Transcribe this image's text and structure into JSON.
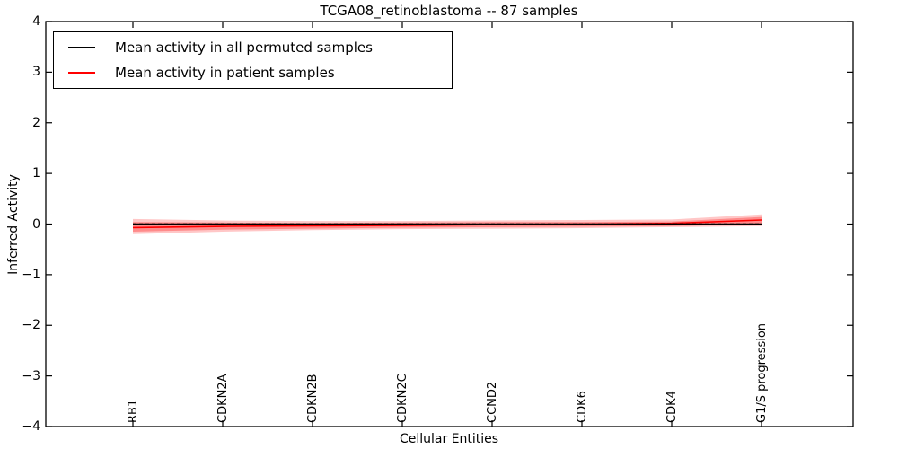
{
  "title": "TCGA08_retinoblastoma -- 87 samples",
  "axes": {
    "xlabel": "Cellular Entities",
    "ylabel": "Inferred Activity",
    "ytick_labels": [
      "4",
      "3",
      "2",
      "1",
      "0",
      "−1",
      "−2",
      "−3",
      "−4"
    ]
  },
  "legend": {
    "items": [
      {
        "label": "Mean activity in all permuted samples",
        "color": "#000000"
      },
      {
        "label": "Mean activity in patient samples",
        "color": "#ff0000"
      }
    ]
  },
  "chart_data": {
    "type": "line",
    "title": "TCGA08_retinoblastoma -- 87 samples",
    "xlabel": "Cellular Entities",
    "ylabel": "Inferred Activity",
    "ylim": [
      -4,
      4
    ],
    "yticks": [
      4,
      3,
      2,
      1,
      0,
      -1,
      -2,
      -3,
      -4
    ],
    "grid": false,
    "legend_position": "upper left",
    "categories": [
      "RB1",
      "CDKN2A",
      "CDKN2B",
      "CDKN2C",
      "CCND2",
      "CDK6",
      "CDK4",
      "G1/S progression"
    ],
    "series": [
      {
        "name": "Mean activity in all permuted samples",
        "color": "#000000",
        "style": "solid",
        "values": [
          0.0,
          0.0,
          0.0,
          0.0,
          0.0,
          0.0,
          0.0,
          0.0
        ]
      },
      {
        "name": "Mean activity in patient samples",
        "color": "#ff0000",
        "style": "solid",
        "values": [
          -0.07,
          -0.045,
          -0.035,
          -0.025,
          -0.01,
          0.0,
          0.015,
          0.08
        ]
      }
    ],
    "bands": [
      {
        "name": "patient-band-outer",
        "color": "#ff0000",
        "opacity": 0.22,
        "upper": [
          0.1,
          0.07,
          0.06,
          0.06,
          0.07,
          0.08,
          0.09,
          0.19
        ],
        "lower": [
          -0.2,
          -0.15,
          -0.12,
          -0.1,
          -0.09,
          -0.08,
          -0.06,
          -0.04
        ]
      },
      {
        "name": "patient-band-inner",
        "color": "#ff0000",
        "opacity": 0.3,
        "upper": [
          0.04,
          0.03,
          0.02,
          0.03,
          0.04,
          0.04,
          0.05,
          0.14
        ],
        "lower": [
          -0.15,
          -0.11,
          -0.09,
          -0.07,
          -0.06,
          -0.05,
          -0.04,
          0.0
        ]
      }
    ],
    "reference_line": {
      "y": 0,
      "style": "dashed",
      "color": "#000000"
    }
  }
}
